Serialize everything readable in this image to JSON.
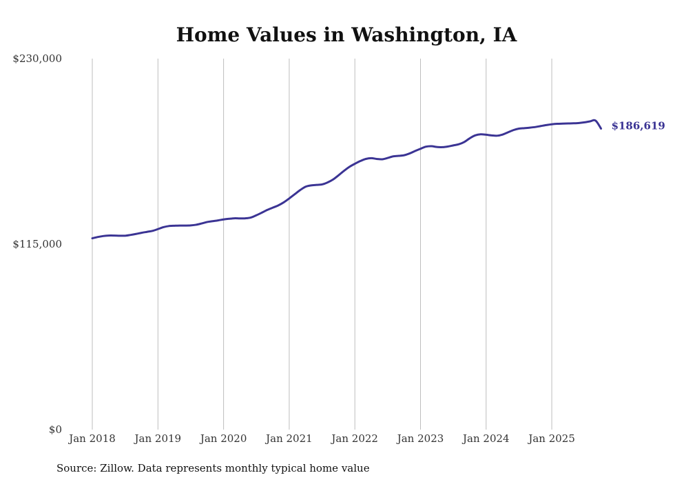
{
  "chart_data": {
    "type": "line",
    "title": "Home Values in Washington, IA",
    "source": "Source: Zillow. Data represents monthly typical home value",
    "xlabel": "",
    "ylabel": "",
    "ylim": [
      0,
      230000
    ],
    "y_ticks": [
      {
        "value": 0,
        "label": "$0"
      },
      {
        "value": 115000,
        "label": "$115,000"
      },
      {
        "value": 230000,
        "label": "$230,000"
      }
    ],
    "x_ticks": [
      {
        "label": "Jan 2018",
        "index": 0
      },
      {
        "label": "Jan 2019",
        "index": 12
      },
      {
        "label": "Jan 2020",
        "index": 24
      },
      {
        "label": "Jan 2021",
        "index": 36
      },
      {
        "label": "Jan 2022",
        "index": 48
      },
      {
        "label": "Jan 2023",
        "index": 60
      },
      {
        "label": "Jan 2024",
        "index": 72
      },
      {
        "label": "Jan 2025",
        "index": 84
      }
    ],
    "grid": "vertical",
    "end_label": "$186,619",
    "series": [
      {
        "name": "Home Values",
        "color": "#3b3494",
        "start": "Jan 2018",
        "frequency": "monthly",
        "values": [
          118600,
          119400,
          120000,
          120300,
          120300,
          120200,
          120200,
          120700,
          121300,
          122000,
          122600,
          123200,
          124300,
          125500,
          126200,
          126400,
          126500,
          126500,
          126600,
          127000,
          127800,
          128700,
          129200,
          129700,
          130300,
          130700,
          131000,
          130900,
          131000,
          131500,
          132900,
          134500,
          136200,
          137600,
          139000,
          140900,
          143300,
          145900,
          148500,
          150600,
          151400,
          151700,
          152000,
          153200,
          155000,
          157600,
          160400,
          162900,
          164800,
          166500,
          167800,
          168300,
          167800,
          167600,
          168400,
          169400,
          169700,
          170100,
          171200,
          172700,
          174100,
          175400,
          175700,
          175200,
          175100,
          175500,
          176200,
          176900,
          178300,
          180600,
          182400,
          183100,
          182800,
          182400,
          182200,
          182900,
          184300,
          185700,
          186600,
          186900,
          187200,
          187600,
          188200,
          188800,
          189300,
          189600,
          189700,
          189800,
          189900,
          190100,
          190500,
          191100,
          191600,
          186619
        ]
      }
    ]
  }
}
